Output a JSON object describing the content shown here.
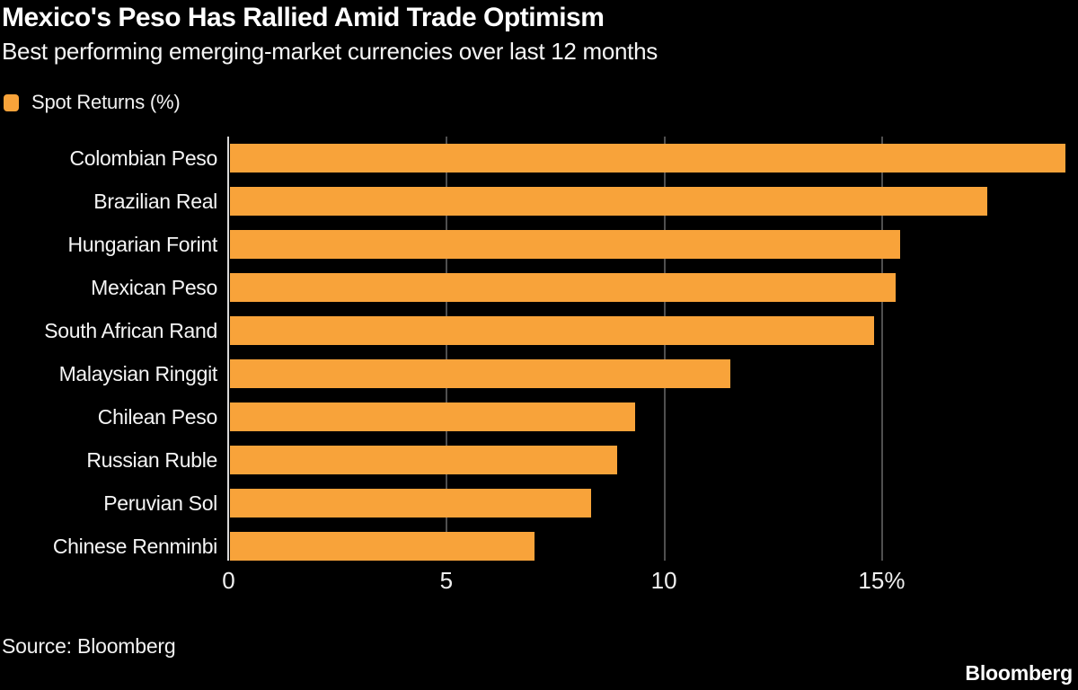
{
  "header": {
    "title": "Mexico's Peso Has Rallied Amid Trade Optimism",
    "subtitle": "Best performing emerging-market currencies over last 12 months"
  },
  "legend": {
    "label": "Spot Returns (%)",
    "swatch_color": "#F8A33A",
    "swatch_icon": "orange-square-icon"
  },
  "footer": {
    "source": "Source: Bloomberg",
    "brand": "Bloomberg"
  },
  "colors": {
    "background": "#000000",
    "bar": "#F8A33A",
    "gridline": "#4F4F4F",
    "zero_axis": "#D9D9D9",
    "text": "#F5F5F5"
  },
  "chart_data": {
    "type": "bar",
    "orientation": "horizontal",
    "title": "Mexico's Peso Has Rallied Amid Trade Optimism",
    "subtitle": "Best performing emerging-market currencies over last 12 months",
    "series_name": "Spot Returns (%)",
    "categories": [
      "Colombian Peso",
      "Brazilian Real",
      "Hungarian Forint",
      "Mexican Peso",
      "South African Rand",
      "Malaysian Ringgit",
      "Chilean Peso",
      "Russian Ruble",
      "Peruvian Sol",
      "Chinese Renminbi"
    ],
    "values": [
      19.2,
      17.4,
      15.4,
      15.3,
      14.8,
      11.5,
      9.3,
      8.9,
      8.3,
      7.0
    ],
    "xlabel": "",
    "ylabel": "",
    "xlim": [
      0,
      19.5
    ],
    "x_ticks": [
      0,
      5,
      10,
      15
    ],
    "x_tick_labels": [
      "0",
      "5",
      "10",
      "15%"
    ],
    "grid": true,
    "legend_position": "top-left",
    "bar_color": "#F8A33A"
  }
}
